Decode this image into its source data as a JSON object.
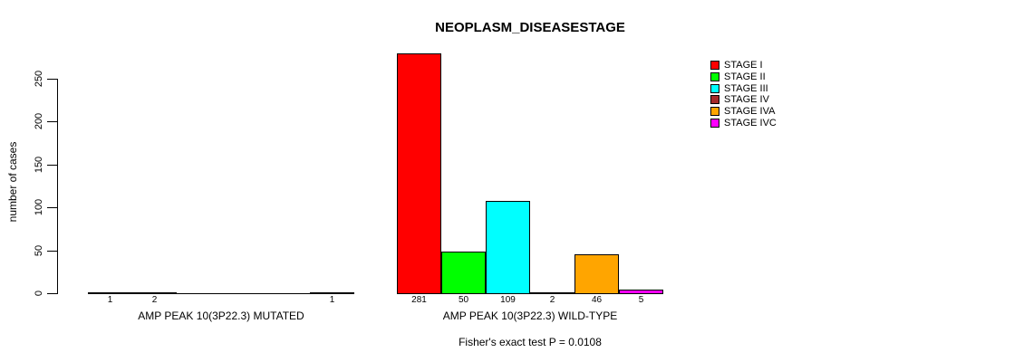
{
  "title": "NEOPLASM_DISEASESTAGE",
  "footnote": "Fisher's exact test P = 0.0108",
  "y_axis": {
    "label": "number of cases",
    "tick_values": [
      0,
      50,
      100,
      150,
      200,
      250
    ]
  },
  "legend": {
    "position": "right",
    "items": [
      {
        "label": "STAGE I",
        "color": "#FF0000"
      },
      {
        "label": "STAGE II",
        "color": "#00FF00"
      },
      {
        "label": "STAGE III",
        "color": "#00FFFF"
      },
      {
        "label": "STAGE IV",
        "color": "#A52A2A"
      },
      {
        "label": "STAGE IVA",
        "color": "#FFA500"
      },
      {
        "label": "STAGE IVC",
        "color": "#FF00FF"
      }
    ]
  },
  "chart_data": {
    "type": "bar",
    "title": "NEOPLASM_DISEASESTAGE",
    "xlabel": "",
    "ylabel": "number of cases",
    "ylim": [
      0,
      250
    ],
    "grid": false,
    "legend_position": "right",
    "categories": [
      "AMP PEAK 10(3P22.3) MUTATED",
      "AMP PEAK 10(3P22.3) WILD-TYPE"
    ],
    "series": [
      {
        "name": "STAGE I",
        "color": "#FF0000",
        "values": [
          1,
          281
        ]
      },
      {
        "name": "STAGE II",
        "color": "#00FF00",
        "values": [
          2,
          50
        ]
      },
      {
        "name": "STAGE III",
        "color": "#00FFFF",
        "values": [
          0,
          109
        ]
      },
      {
        "name": "STAGE IV",
        "color": "#A52A2A",
        "values": [
          0,
          2
        ]
      },
      {
        "name": "STAGE IVA",
        "color": "#FFA500",
        "values": [
          0,
          46
        ]
      },
      {
        "name": "STAGE IVC",
        "color": "#FF00FF",
        "values": [
          1,
          5
        ]
      }
    ],
    "bar_value_labels_shown_when": "value > 0",
    "annotation": "Fisher's exact test P = 0.0108"
  }
}
